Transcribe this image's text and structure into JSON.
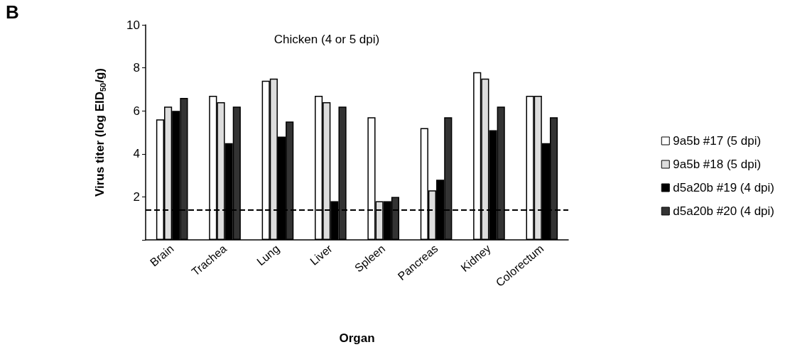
{
  "chart_data": {
    "type": "bar",
    "title": "Chicken (4 or 5 dpi)",
    "xlabel": "Organ",
    "ylabel": "Virus titer (log EID$_{50}$/g)",
    "annotations": [
      "B"
    ],
    "categories": [
      "Brain",
      "Trachea",
      "Lung",
      "Liver",
      "Spleen",
      "Pancreas",
      "Kidney",
      "Colorectum"
    ],
    "series": [
      {
        "name": "9a5b #17 (5 dpi)",
        "color": "#ffffff",
        "values": [
          5.6,
          6.7,
          7.4,
          6.7,
          5.7,
          5.2,
          7.8,
          6.7
        ]
      },
      {
        "name": "9a5b #18 (5 dpi)",
        "color": "#dddddd",
        "values": [
          6.2,
          6.4,
          7.5,
          6.4,
          1.8,
          2.3,
          7.5,
          6.7
        ]
      },
      {
        "name": "d5a20b #19 (4 dpi)",
        "color": "#000000",
        "values": [
          6.0,
          4.5,
          4.8,
          1.8,
          1.8,
          2.8,
          5.1,
          4.5
        ]
      },
      {
        "name": "d5a20b #20 (4 dpi)",
        "color": "#333333",
        "values": [
          6.6,
          6.2,
          5.5,
          6.2,
          2.0,
          5.7,
          6.2,
          5.7
        ]
      }
    ],
    "ylim": [
      0,
      10
    ],
    "yticks": [
      {
        "value": 0,
        "label": null
      },
      2,
      4,
      6,
      8,
      10
    ],
    "ref_lines": [
      {
        "axis": "y",
        "value": 1.4,
        "color": "#000000",
        "line_style": "dashed"
      }
    ],
    "grid": false,
    "legend": "right"
  }
}
